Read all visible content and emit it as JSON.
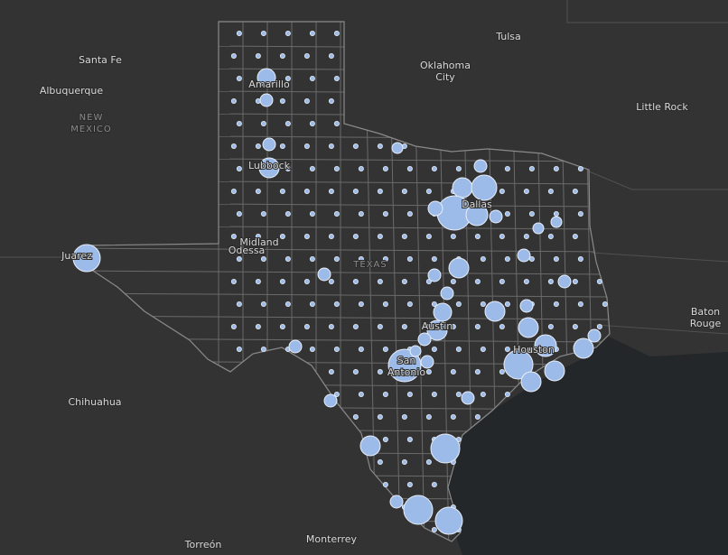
{
  "places": [
    {
      "name": "Tulsa"
    },
    {
      "name": "Santa Fe"
    },
    {
      "name": "Albuquerque"
    },
    {
      "lines": [
        "NEW",
        "MEXICO"
      ]
    },
    {
      "lines": [
        "Oklahoma",
        "City"
      ]
    },
    {
      "name": "Little Rock"
    },
    {
      "name": "Amarillo"
    },
    {
      "name": "Lubbock"
    },
    {
      "name": "Dallas"
    },
    {
      "name": "Juarez"
    },
    {
      "name": "Midland"
    },
    {
      "name": "Odessa"
    },
    {
      "name": "TEXAS"
    },
    {
      "name": "Austin"
    },
    {
      "name": "Houston"
    },
    {
      "lines": [
        "San",
        "Antonio"
      ]
    },
    {
      "lines": [
        "Baton",
        "Rouge"
      ]
    },
    {
      "name": "Chihuahua"
    },
    {
      "name": "Torreón"
    },
    {
      "name": "Monterrey"
    }
  ]
}
